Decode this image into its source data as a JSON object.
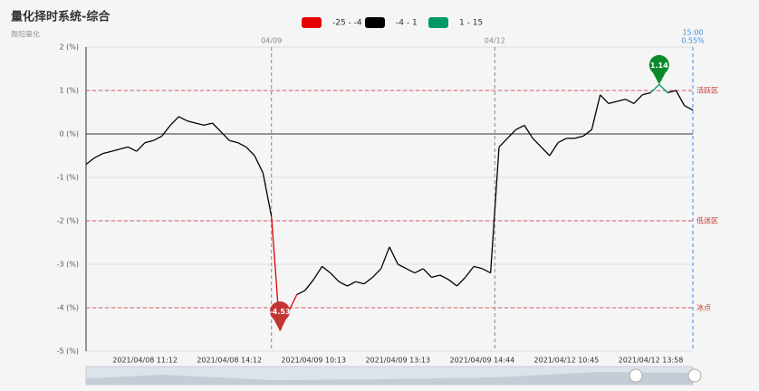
{
  "chart_data": {
    "type": "line",
    "title": "量化择时系统-综合",
    "subtitle": "舞阳量化",
    "pieces": [
      {
        "label": "-25 - -4",
        "min": -25,
        "max": -4,
        "color": "#e60000"
      },
      {
        "label": "-4 - 1",
        "min": -4,
        "max": 1,
        "color": "#000000"
      },
      {
        "label": "1 - 15",
        "min": 1,
        "max": 15,
        "color": "#009966"
      }
    ],
    "categories": [
      null,
      null,
      null,
      null,
      null,
      null,
      null,
      "2021/04/08 11:12",
      null,
      null,
      null,
      null,
      null,
      null,
      null,
      null,
      null,
      "2021/04/08 14:12",
      null,
      null,
      null,
      null,
      null,
      null,
      null,
      null,
      null,
      "2021/04/09 10:13",
      null,
      null,
      null,
      null,
      null,
      null,
      null,
      null,
      null,
      "2021/04/09 13:13",
      null,
      null,
      null,
      null,
      null,
      null,
      null,
      null,
      null,
      "2021/04/09 14:44",
      null,
      null,
      null,
      null,
      null,
      null,
      null,
      null,
      null,
      "2021/04/12 10:45",
      null,
      null,
      null,
      null,
      null,
      null,
      null,
      null,
      null,
      "2021/04/12 13:58",
      null,
      null,
      null,
      null,
      null
    ],
    "series": [
      {
        "name": "综合",
        "values": [
          -0.7,
          -0.55,
          -0.45,
          -0.4,
          -0.35,
          -0.3,
          -0.4,
          -0.2,
          -0.15,
          -0.05,
          0.2,
          0.4,
          0.3,
          0.25,
          0.2,
          0.25,
          0.05,
          -0.15,
          -0.2,
          -0.3,
          -0.5,
          -0.9,
          -1.9,
          -4.53,
          -4.1,
          -3.7,
          -3.6,
          -3.35,
          -3.05,
          -3.2,
          -3.4,
          -3.5,
          -3.4,
          -3.45,
          -3.3,
          -3.1,
          -2.6,
          -3.0,
          -3.1,
          -3.2,
          -3.1,
          -3.3,
          -3.25,
          -3.35,
          -3.5,
          -3.3,
          -3.05,
          -3.1,
          -3.2,
          -0.3,
          -0.1,
          0.1,
          0.2,
          -0.1,
          -0.3,
          -0.5,
          -0.2,
          -0.1,
          -0.1,
          -0.05,
          0.1,
          0.9,
          0.7,
          0.75,
          0.8,
          0.7,
          0.9,
          0.95,
          1.14,
          0.95,
          1.0,
          0.65,
          0.55
        ]
      }
    ],
    "ylim": [
      -5,
      2
    ],
    "yticks": [
      {
        "value": -5,
        "label": "-5 (%)"
      },
      {
        "value": -4,
        "label": "-4 (%)"
      },
      {
        "value": -3,
        "label": "-3 (%)"
      },
      {
        "value": -2,
        "label": "-2 (%)"
      },
      {
        "value": -1,
        "label": "-1 (%)"
      },
      {
        "value": 0,
        "label": "0 (%)"
      },
      {
        "value": 1,
        "label": "1 (%)"
      },
      {
        "value": 2,
        "label": "2 (%)"
      }
    ],
    "y_mark_lines": [
      {
        "value": 1,
        "label": "活跃区"
      },
      {
        "value": -2,
        "label": "低迷区"
      },
      {
        "value": -4,
        "label": "冰点"
      }
    ],
    "x_mark_lines": [
      {
        "index": 22,
        "label": "04/09"
      },
      {
        "index": 48.5,
        "label": "04/12"
      },
      {
        "index": 72,
        "label": "15:00",
        "sublabel": "0.55%"
      }
    ]
  }
}
